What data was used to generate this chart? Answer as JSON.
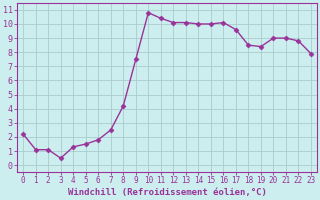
{
  "x": [
    0,
    1,
    2,
    3,
    4,
    5,
    6,
    7,
    8,
    9,
    10,
    11,
    12,
    13,
    14,
    15,
    16,
    17,
    18,
    19,
    20,
    21,
    22,
    23
  ],
  "y": [
    2.2,
    1.1,
    1.1,
    0.5,
    1.3,
    1.5,
    1.8,
    2.5,
    4.2,
    7.5,
    10.8,
    10.4,
    10.1,
    10.1,
    10.0,
    10.0,
    10.1,
    9.6,
    8.5,
    8.4,
    9.0,
    9.0,
    8.8,
    7.9
  ],
  "xlabel": "Windchill (Refroidissement éolien,°C)",
  "ylabel_ticks": [
    0,
    1,
    2,
    3,
    4,
    5,
    6,
    7,
    8,
    9,
    10,
    11
  ],
  "xlim": [
    -0.5,
    23.5
  ],
  "ylim": [
    -0.5,
    11.5
  ],
  "line_color": "#993399",
  "marker": "D",
  "marker_size": 2.5,
  "bg_color": "#cceeee",
  "grid_color": "#aacccc",
  "tick_color": "#993399",
  "label_color": "#993399",
  "tick_fontsize": 5.5,
  "label_fontsize": 6.5
}
